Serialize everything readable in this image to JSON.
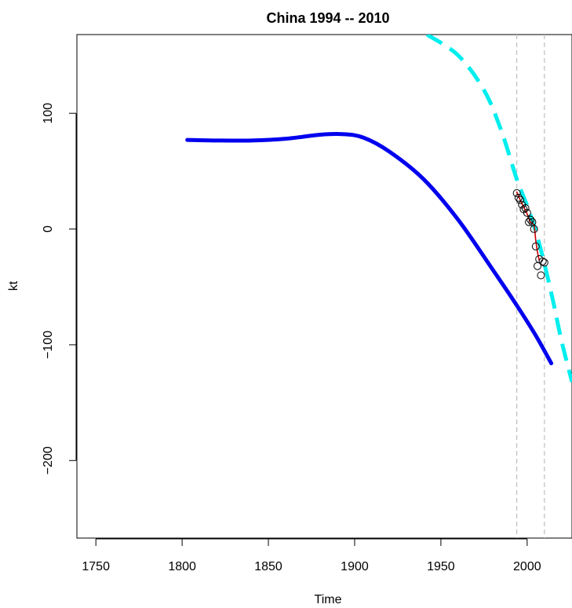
{
  "chart_data": {
    "type": "line",
    "title": "China 1994 -- 2010",
    "xlabel": "Time",
    "ylabel": "kt",
    "xlim": [
      1739,
      2026
    ],
    "ylim": [
      -267,
      168
    ],
    "x_ticks": [
      1750,
      1800,
      1850,
      1900,
      1950,
      2000
    ],
    "y_ticks": [
      -200,
      -100,
      0,
      100
    ],
    "x_tick_labels": [
      "1750",
      "1800",
      "1850",
      "1900",
      "1950",
      "2000"
    ],
    "y_tick_labels": [
      "-200",
      "-100",
      "0",
      "100"
    ],
    "grid": false,
    "colors": {
      "smooth_series": "#0000ee",
      "projection_series": "#00eeee",
      "observed_line": "#cc0000",
      "observed_points": "#000000",
      "reference_lines": "#bebebe"
    },
    "series": [
      {
        "style": "solid",
        "color": "#0000ee",
        "x": [
          1803,
          1820,
          1840,
          1860,
          1880,
          1893,
          1905,
          1920,
          1940,
          1960,
          1980,
          1994,
          2005,
          2014
        ],
        "y": [
          77,
          76.5,
          76.5,
          78,
          81.5,
          82,
          79,
          67,
          43,
          8,
          -35,
          -66,
          -92,
          -116
        ]
      },
      {
        "style": "dashed",
        "color": "#00eeee",
        "x": [
          1942,
          1960,
          1975,
          1985,
          1994,
          2000,
          2005,
          2010,
          2015,
          2020,
          2026
        ],
        "y": [
          168,
          150,
          120,
          85,
          43,
          20,
          -2,
          -30,
          -62,
          -97,
          -132
        ]
      },
      {
        "style": "solid",
        "color": "#cc0000",
        "x": [
          1994,
          1996,
          1998,
          2000,
          2002,
          2004,
          2005,
          2006,
          2007
        ],
        "y": [
          32,
          25,
          19,
          13,
          6,
          3,
          -10,
          -20,
          -27
        ]
      }
    ],
    "points": {
      "x": [
        1994,
        1995,
        1996,
        1997,
        1998,
        1999,
        2000,
        2001,
        2002,
        2003,
        2004,
        2005,
        2006,
        2007,
        2008,
        2009,
        2010
      ],
      "y": [
        31,
        27,
        25,
        21,
        17,
        18,
        14,
        6,
        8,
        6,
        0,
        -15,
        -32,
        -26,
        -40,
        -28,
        -29
      ]
    },
    "vlines": [
      1994,
      2010
    ]
  }
}
